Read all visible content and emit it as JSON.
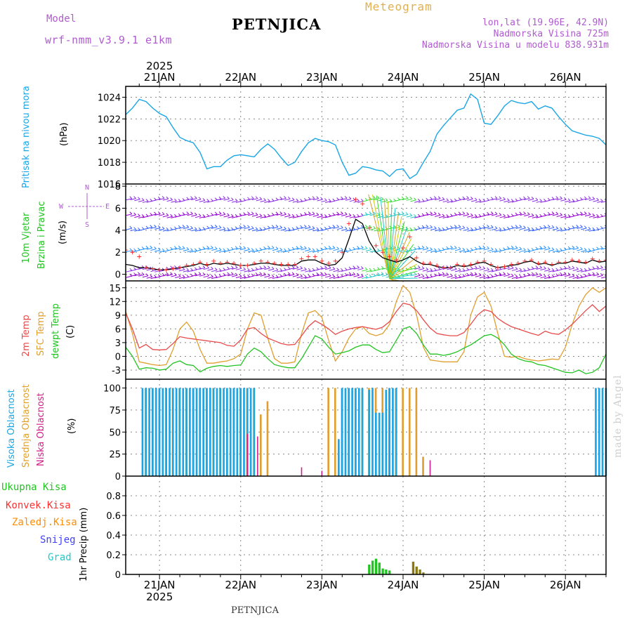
{
  "header": {
    "model_label": "Model",
    "model_name": "wrf-nmm_v3.9.1 e1km",
    "station": "PETNJICA",
    "product": "Meteogram",
    "lonlat": "lon,lat (19.96E, 42.9N)",
    "altitude": "Nadmorska Visina 725m",
    "model_altitude": "Nadmorska Visina u modelu 838.931m",
    "footer_station": "PETNJICA",
    "watermark": "made by Angel"
  },
  "colors": {
    "pressure": "#1aa6e6",
    "wind_speed": "#000000",
    "gust": "#ff3030",
    "t2m": "#e84a4a",
    "tsfc": "#e0a030",
    "dewpoint": "#22c422",
    "high_cloud": "#1aa6e6",
    "mid_cloud": "#e0a030",
    "low_cloud": "#d0208a",
    "total_precip": "#22c422",
    "convective": "#ff3030",
    "freezing": "#ff8c00",
    "snow": "#4040ff",
    "hail": "#20c8c8",
    "precip_olive": "#8a7a10"
  },
  "time_axis": {
    "year": "2025",
    "days": [
      "21JAN",
      "22JAN",
      "23JAN",
      "24JAN",
      "25JAN",
      "26JAN"
    ],
    "start_hour": 14,
    "end_hour": 156
  },
  "chart_data": [
    {
      "type": "line",
      "panel": "pressure",
      "ylabel_main": "Pritisak na nivou mora",
      "ylabel_unit": "(hPa)",
      "ylim": [
        1016,
        1025
      ],
      "yticks": [
        1016,
        1018,
        1020,
        1022,
        1024
      ],
      "grid": true,
      "x": [
        14,
        16,
        18,
        20,
        22,
        24,
        26,
        28,
        30,
        32,
        34,
        36,
        38,
        40,
        42,
        44,
        46,
        48,
        50,
        52,
        54,
        56,
        58,
        60,
        62,
        64,
        66,
        68,
        70,
        72,
        74,
        76,
        78,
        80,
        82,
        84,
        86,
        88,
        90,
        92,
        94,
        96,
        98,
        100,
        102,
        104,
        106,
        108,
        110,
        112,
        114,
        116,
        118,
        120,
        122,
        124,
        126,
        128,
        130,
        132,
        134,
        136,
        138,
        140,
        142,
        144,
        146,
        148,
        150,
        152,
        154,
        156
      ],
      "series": [
        {
          "values": [
            1022.4,
            1023.0,
            1023.8,
            1023.6,
            1023.0,
            1022.5,
            1022.2,
            1021.2,
            1020.3,
            1020.0,
            1019.8,
            1018.9,
            1017.4,
            1017.6,
            1017.6,
            1018.2,
            1018.6,
            1018.7,
            1018.6,
            1018.5,
            1019.2,
            1019.7,
            1019.2,
            1018.4,
            1017.7,
            1018.0,
            1019.0,
            1019.8,
            1020.2,
            1020.0,
            1019.9,
            1019.6,
            1018.0,
            1016.8,
            1017.0,
            1017.6,
            1017.5,
            1017.3,
            1017.2,
            1016.7,
            1017.3,
            1017.4,
            1016.5,
            1016.9,
            1018.0,
            1019.0,
            1020.6,
            1021.4,
            1022.1,
            1022.8,
            1023.0,
            1024.3,
            1023.8,
            1021.6,
            1021.5,
            1022.3,
            1023.2,
            1023.7,
            1023.5,
            1023.4,
            1023.6,
            1022.9,
            1023.2,
            1023.0,
            1022.2,
            1021.5,
            1020.9,
            1020.7,
            1020.5,
            1020.4,
            1020.2,
            1019.6
          ]
        }
      ]
    },
    {
      "type": "line",
      "panel": "wind",
      "ylabel_main": "10m Vjetar",
      "ylabel_main2": "Brzina i Pravac",
      "ylabel_unit": "(m/s)",
      "compass": [
        "N",
        "W",
        "E",
        "S"
      ],
      "ylim": [
        -0.6,
        8.2
      ],
      "yticks": [
        0,
        2,
        4,
        6,
        8
      ],
      "grid": true,
      "x": [
        14,
        16,
        18,
        20,
        22,
        24,
        26,
        28,
        30,
        32,
        34,
        36,
        38,
        40,
        42,
        44,
        46,
        48,
        50,
        52,
        54,
        56,
        58,
        60,
        62,
        64,
        66,
        68,
        70,
        72,
        74,
        76,
        78,
        80,
        82,
        84,
        86,
        88,
        90,
        92,
        94,
        96,
        98,
        100,
        102,
        104,
        106,
        108,
        110,
        112,
        114,
        116,
        118,
        120,
        122,
        124,
        126,
        128,
        130,
        132,
        134,
        136,
        138,
        140,
        142,
        144,
        146,
        148,
        150,
        152,
        154,
        156
      ],
      "series": [
        {
          "name": "speed",
          "values": [
            0.9,
            0.8,
            0.6,
            0.6,
            0.5,
            0.4,
            0.4,
            0.5,
            0.6,
            0.7,
            0.8,
            1.0,
            0.8,
            1.0,
            0.9,
            1.0,
            0.9,
            0.8,
            0.8,
            0.9,
            1.0,
            1.0,
            0.9,
            0.8,
            0.8,
            0.8,
            1.2,
            1.3,
            1.3,
            1.0,
            0.8,
            0.9,
            1.5,
            3.2,
            5.0,
            4.6,
            3.0,
            2.0,
            1.5,
            1.3,
            1.1,
            1.3,
            1.6,
            1.2,
            0.9,
            0.9,
            0.7,
            0.6,
            0.6,
            0.8,
            0.7,
            0.8,
            1.0,
            1.1,
            0.8,
            0.6,
            0.7,
            0.8,
            0.9,
            1.1,
            1.2,
            0.9,
            1.0,
            0.8,
            1.0,
            1.0,
            1.2,
            1.1,
            1.0,
            1.3,
            1.1,
            1.2
          ]
        },
        {
          "name": "gust",
          "values": [
            2.2,
            2.0,
            1.6,
            0.6,
            0.5,
            0.4,
            0.4,
            0.5,
            0.6,
            0.8,
            0.9,
            1.1,
            0.9,
            1.2,
            1.0,
            1.1,
            1.0,
            0.8,
            0.8,
            1.0,
            1.2,
            1.1,
            1.0,
            0.9,
            0.9,
            0.9,
            1.4,
            1.6,
            1.6,
            1.2,
            1.0,
            1.2,
            2.0,
            4.6,
            6.8,
            6.4,
            4.2,
            2.6,
            2.0,
            1.6,
            1.3,
            2.4,
            3.4,
            1.5,
            1.0,
            1.0,
            0.8,
            0.6,
            0.6,
            0.9,
            0.8,
            0.9,
            1.1,
            1.2,
            0.9,
            0.6,
            0.7,
            0.9,
            1.0,
            1.2,
            1.3,
            1.0,
            1.1,
            0.9,
            1.1,
            1.1,
            1.3,
            1.2,
            1.1,
            1.4,
            1.2,
            1.3
          ]
        }
      ]
    },
    {
      "type": "line",
      "panel": "temperature",
      "ylabel_main": "2m Temp",
      "ylabel_main2": "SFC Temp",
      "ylabel_main3": "dewpt Temp",
      "ylabel_unit": "(C)",
      "ylim": [
        -5,
        16.5
      ],
      "yticks": [
        -3,
        0,
        3,
        6,
        9,
        12,
        15
      ],
      "grid": true,
      "x": [
        14,
        16,
        18,
        20,
        22,
        24,
        26,
        28,
        30,
        32,
        34,
        36,
        38,
        40,
        42,
        44,
        46,
        48,
        50,
        52,
        54,
        56,
        58,
        60,
        62,
        64,
        66,
        68,
        70,
        72,
        74,
        76,
        78,
        80,
        82,
        84,
        86,
        88,
        90,
        92,
        94,
        96,
        98,
        100,
        102,
        104,
        106,
        108,
        110,
        112,
        114,
        116,
        118,
        120,
        122,
        124,
        126,
        128,
        130,
        132,
        134,
        136,
        138,
        140,
        142,
        144,
        146,
        148,
        150,
        152,
        154,
        156
      ],
      "series": [
        {
          "name": "t2m",
          "values": [
            9.5,
            6.0,
            1.8,
            2.6,
            1.5,
            1.4,
            1.5,
            2.8,
            4.3,
            4.0,
            3.8,
            3.6,
            3.4,
            3.2,
            3.0,
            2.4,
            2.2,
            3.6,
            6.0,
            6.3,
            5.0,
            4.0,
            3.4,
            2.8,
            2.5,
            2.6,
            4.5,
            6.5,
            7.8,
            7.0,
            6.0,
            4.8,
            5.5,
            6.0,
            6.3,
            6.5,
            6.2,
            5.9,
            6.4,
            7.6,
            9.8,
            11.6,
            11.3,
            10.0,
            8.0,
            6.2,
            5.0,
            4.7,
            4.5,
            4.5,
            5.2,
            7.0,
            9.0,
            10.2,
            9.8,
            8.3,
            7.3,
            6.5,
            6.0,
            5.5,
            5.0,
            4.6,
            5.5,
            5.0,
            4.8,
            5.8,
            7.0,
            8.5,
            10.0,
            11.3,
            9.8,
            11.0
          ]
        },
        {
          "name": "tsfc",
          "values": [
            9.8,
            5.0,
            -1.2,
            -1.5,
            -1.8,
            -2.0,
            -1.8,
            1.5,
            6.0,
            7.5,
            5.5,
            1.5,
            -1.5,
            -1.5,
            -1.2,
            -1.0,
            -0.5,
            0.5,
            6.0,
            9.5,
            9.0,
            4.0,
            -0.5,
            -1.5,
            -1.5,
            -1.2,
            5.0,
            9.5,
            10.0,
            8.5,
            3.5,
            -1.0,
            1.0,
            4.0,
            6.0,
            6.5,
            5.0,
            4.5,
            5.0,
            7.0,
            12.0,
            15.5,
            14.0,
            9.0,
            2.0,
            -0.8,
            -1.0,
            -1.2,
            -1.2,
            -1.2,
            1.0,
            9.0,
            13.0,
            14.0,
            11.0,
            5.0,
            0.0,
            -0.2,
            0.0,
            -0.5,
            -0.8,
            -1.0,
            -0.8,
            -0.6,
            -0.7,
            2.0,
            7.0,
            11.0,
            13.5,
            15.0,
            14.0,
            15.0
          ]
        },
        {
          "name": "dewpoint",
          "values": [
            2.0,
            0.0,
            -2.8,
            -2.5,
            -2.6,
            -3.0,
            -2.8,
            -1.5,
            -1.0,
            -1.8,
            -2.0,
            -3.4,
            -2.6,
            -2.2,
            -2.0,
            -2.2,
            -2.0,
            -1.9,
            0.5,
            1.8,
            1.0,
            -0.5,
            -1.8,
            -2.2,
            -2.5,
            -2.5,
            -0.5,
            2.0,
            4.5,
            3.8,
            2.0,
            0.5,
            0.8,
            1.2,
            2.0,
            2.5,
            2.5,
            1.5,
            0.8,
            1.0,
            3.5,
            6.0,
            6.5,
            5.0,
            2.5,
            0.5,
            0.5,
            0.2,
            0.5,
            1.0,
            1.8,
            2.5,
            3.5,
            4.5,
            4.8,
            4.0,
            2.5,
            0.5,
            -0.5,
            -1.0,
            -1.2,
            -1.8,
            -2.0,
            -2.5,
            -3.0,
            -3.5,
            -3.6,
            -3.0,
            -3.8,
            -3.5,
            -2.5,
            0.5
          ]
        }
      ]
    },
    {
      "type": "bar",
      "panel": "cloud",
      "ylabel_main": "Visoka Oblacnost",
      "ylabel_main2": "Srednja Oblacnost",
      "ylabel_main3": "Niska Oblacnost",
      "ylabel_unit": "(%)",
      "ylim": [
        0,
        110
      ],
      "yticks": [
        0,
        25,
        50,
        75,
        100
      ],
      "grid": true,
      "high": [
        [
          19,
          100
        ],
        [
          20,
          100
        ],
        [
          21,
          100
        ],
        [
          22,
          100
        ],
        [
          23,
          100
        ],
        [
          24,
          100
        ],
        [
          25,
          100
        ],
        [
          26,
          100
        ],
        [
          27,
          100
        ],
        [
          28,
          100
        ],
        [
          29,
          100
        ],
        [
          30,
          100
        ],
        [
          31,
          100
        ],
        [
          32,
          100
        ],
        [
          33,
          100
        ],
        [
          34,
          100
        ],
        [
          35,
          100
        ],
        [
          36,
          100
        ],
        [
          37,
          100
        ],
        [
          38,
          100
        ],
        [
          39,
          100
        ],
        [
          40,
          100
        ],
        [
          41,
          100
        ],
        [
          42,
          100
        ],
        [
          43,
          100
        ],
        [
          44,
          100
        ],
        [
          45,
          100
        ],
        [
          46,
          100
        ],
        [
          47,
          100
        ],
        [
          48,
          100
        ],
        [
          49,
          100
        ],
        [
          50,
          100
        ],
        [
          51,
          100
        ],
        [
          52,
          100
        ],
        [
          77,
          42
        ],
        [
          78,
          100
        ],
        [
          79,
          100
        ],
        [
          80,
          100
        ],
        [
          81,
          100
        ],
        [
          82,
          100
        ],
        [
          83,
          100
        ],
        [
          84,
          100
        ],
        [
          86,
          98
        ],
        [
          87,
          100
        ],
        [
          88,
          72
        ],
        [
          89,
          72
        ],
        [
          90,
          72
        ],
        [
          91,
          98
        ],
        [
          92,
          100
        ],
        [
          93,
          100
        ],
        [
          94,
          100
        ],
        [
          153,
          100
        ],
        [
          154,
          100
        ],
        [
          155,
          100
        ],
        [
          156,
          100
        ]
      ],
      "mid": [
        [
          20,
          100
        ],
        [
          22,
          100
        ],
        [
          24,
          100
        ],
        [
          26,
          100
        ],
        [
          28,
          100
        ],
        [
          30,
          100
        ],
        [
          32,
          100
        ],
        [
          34,
          100
        ],
        [
          36,
          100
        ],
        [
          38,
          100
        ],
        [
          40,
          100
        ],
        [
          42,
          100
        ],
        [
          44,
          100
        ],
        [
          46,
          100
        ],
        [
          48,
          100
        ],
        [
          50,
          100
        ],
        [
          52,
          100
        ],
        [
          54,
          70
        ],
        [
          56,
          85
        ],
        [
          74,
          100
        ],
        [
          76,
          100
        ],
        [
          78,
          100
        ],
        [
          80,
          100
        ],
        [
          82,
          100
        ],
        [
          84,
          100
        ],
        [
          86,
          100
        ],
        [
          88,
          100
        ],
        [
          90,
          100
        ],
        [
          92,
          100
        ],
        [
          94,
          100
        ],
        [
          96,
          100
        ],
        [
          98,
          100
        ],
        [
          100,
          100
        ],
        [
          102,
          22
        ]
      ],
      "low": [
        [
          50,
          48
        ],
        [
          53,
          45
        ],
        [
          66,
          10
        ],
        [
          72,
          6
        ],
        [
          104,
          18
        ]
      ]
    },
    {
      "type": "bar",
      "panel": "precip",
      "legend": [
        "Ukupna Kisa",
        "Konvek.Kisa",
        "Zaledj.Kisa",
        "Snijeg",
        "Grad"
      ],
      "ylabel_unit": "1hr Precip (mm)",
      "ylim": [
        0,
        1
      ],
      "yticks": [
        0,
        0.2,
        0.4,
        0.6,
        0.8
      ],
      "grid": true,
      "total": [
        [
          86,
          0.1
        ],
        [
          87,
          0.14
        ],
        [
          88,
          0.16
        ],
        [
          89,
          0.12
        ],
        [
          90,
          0.06
        ],
        [
          91,
          0.05
        ],
        [
          92,
          0.04
        ]
      ],
      "olive": [
        [
          99,
          0.13
        ],
        [
          100,
          0.08
        ],
        [
          101,
          0.05
        ],
        [
          102,
          0.02
        ]
      ]
    }
  ]
}
